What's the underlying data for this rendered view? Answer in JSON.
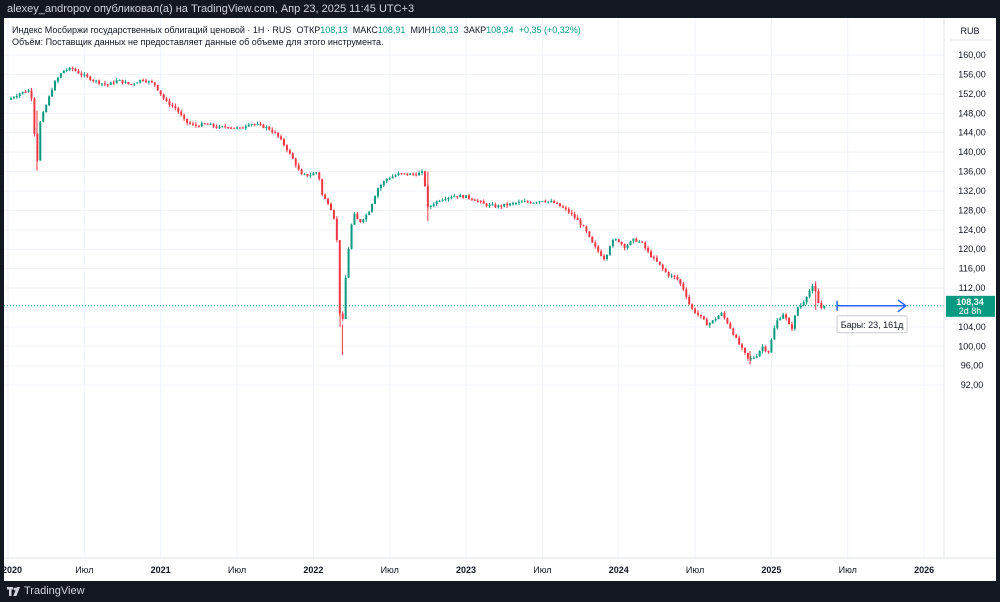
{
  "header": {
    "publisher_line": "alexey_andropov опубликовал(а) на TradingView.com, Апр 23, 2025 11:45 UTC+3"
  },
  "legend": {
    "instrument": "Индекс Мосбиржи государственных облигаций ценовой · 1Н · RUS",
    "open_label": "ОТКР",
    "open_value": "108,13",
    "high_label": "МАКС",
    "high_value": "108,91",
    "low_label": "МИН",
    "low_value": "108,13",
    "close_label": "ЗАКР",
    "close_value": "108,34",
    "change": "+0,35 (+0,32%)",
    "volume_note": "Объём: Поставщик данных не предоставляет данные об объеме для этого инструмента."
  },
  "footer": {
    "brand": "TradingView"
  },
  "colors": {
    "up": "#089981",
    "down": "#f23645",
    "tool": "#2962ff",
    "grid": "#f0f3fa",
    "price_line": "#089981"
  },
  "chart_data": {
    "type": "candlestick",
    "timeframe": "1W",
    "currency": "RUB",
    "y_axis": {
      "min": 90,
      "max": 162,
      "ticks": [
        92,
        96,
        100,
        104,
        108,
        112,
        116,
        120,
        124,
        128,
        132,
        136,
        140,
        144,
        148,
        152,
        156,
        160
      ],
      "tick_labels": [
        "92,00",
        "96,00",
        "100,00",
        "104,00",
        "108,00",
        "112,00",
        "116,00",
        "120,00",
        "124,00",
        "128,00",
        "132,00",
        "136,00",
        "140,00",
        "144,00",
        "148,00",
        "152,00",
        "156,00",
        "160,00"
      ]
    },
    "x_axis": {
      "start": 2020.0,
      "end": 2026.15,
      "ticks": [
        2020.0,
        2020.5,
        2021.0,
        2021.5,
        2022.0,
        2022.5,
        2023.0,
        2023.5,
        2024.0,
        2024.5,
        2025.0,
        2025.5,
        2026.0
      ],
      "tick_labels": [
        "2020",
        "Июл",
        "2021",
        "Июл",
        "2022",
        "Июл",
        "2023",
        "Июл",
        "2024",
        "Июл",
        "2025",
        "Июл",
        "2026"
      ]
    },
    "last_price": {
      "value": 108.34,
      "label": "108,34",
      "countdown": "2d 8h"
    },
    "path_points": [
      [
        2020.0,
        150.8
      ],
      [
        2020.08,
        152.2
      ],
      [
        2020.15,
        152.8
      ],
      [
        2020.19,
        137.5
      ],
      [
        2020.21,
        146.0
      ],
      [
        2020.24,
        148.8
      ],
      [
        2020.3,
        154.0
      ],
      [
        2020.36,
        156.8
      ],
      [
        2020.42,
        157.2
      ],
      [
        2020.48,
        156.0
      ],
      [
        2020.56,
        154.8
      ],
      [
        2020.65,
        153.8
      ],
      [
        2020.72,
        154.8
      ],
      [
        2020.8,
        153.9
      ],
      [
        2020.88,
        155.0
      ],
      [
        2020.96,
        154.0
      ],
      [
        2021.03,
        150.5
      ],
      [
        2021.1,
        149.0
      ],
      [
        2021.16,
        146.3
      ],
      [
        2021.22,
        145.4
      ],
      [
        2021.3,
        145.8
      ],
      [
        2021.38,
        145.0
      ],
      [
        2021.44,
        145.3
      ],
      [
        2021.52,
        144.8
      ],
      [
        2021.58,
        146.0
      ],
      [
        2021.64,
        145.5
      ],
      [
        2021.7,
        145.0
      ],
      [
        2021.76,
        143.6
      ],
      [
        2021.82,
        141.0
      ],
      [
        2021.88,
        137.8
      ],
      [
        2021.92,
        135.2
      ],
      [
        2021.98,
        135.3
      ],
      [
        2022.03,
        136.0
      ],
      [
        2022.06,
        130.8
      ],
      [
        2022.1,
        129.5
      ],
      [
        2022.12,
        128.0
      ],
      [
        2022.15,
        125.0
      ],
      [
        2022.17,
        108.3
      ],
      [
        2022.185,
        101.5
      ],
      [
        2022.205,
        112.0
      ],
      [
        2022.23,
        120.0
      ],
      [
        2022.26,
        127.5
      ],
      [
        2022.3,
        125.5
      ],
      [
        2022.36,
        127.5
      ],
      [
        2022.42,
        132.5
      ],
      [
        2022.48,
        134.5
      ],
      [
        2022.56,
        135.5
      ],
      [
        2022.66,
        135.4
      ],
      [
        2022.72,
        135.8
      ],
      [
        2022.75,
        128.5
      ],
      [
        2022.79,
        129.5
      ],
      [
        2022.84,
        130.4
      ],
      [
        2022.92,
        131.0
      ],
      [
        2023.0,
        130.8
      ],
      [
        2023.06,
        130.2
      ],
      [
        2023.12,
        129.2
      ],
      [
        2023.2,
        128.8
      ],
      [
        2023.28,
        129.2
      ],
      [
        2023.36,
        129.7
      ],
      [
        2023.44,
        129.7
      ],
      [
        2023.5,
        130.1
      ],
      [
        2023.58,
        129.5
      ],
      [
        2023.66,
        128.0
      ],
      [
        2023.72,
        126.3
      ],
      [
        2023.78,
        124.0
      ],
      [
        2023.83,
        121.0
      ],
      [
        2023.88,
        119.0
      ],
      [
        2023.91,
        118.0
      ],
      [
        2023.95,
        121.5
      ],
      [
        2023.99,
        122.0
      ],
      [
        2024.04,
        120.5
      ],
      [
        2024.1,
        122.0
      ],
      [
        2024.15,
        121.3
      ],
      [
        2024.2,
        119.0
      ],
      [
        2024.26,
        117.0
      ],
      [
        2024.32,
        114.8
      ],
      [
        2024.38,
        114.0
      ],
      [
        2024.43,
        111.5
      ],
      [
        2024.47,
        108.0
      ],
      [
        2024.52,
        106.5
      ],
      [
        2024.58,
        104.5
      ],
      [
        2024.62,
        105.3
      ],
      [
        2024.67,
        106.8
      ],
      [
        2024.72,
        104.5
      ],
      [
        2024.76,
        102.0
      ],
      [
        2024.8,
        99.8
      ],
      [
        2024.85,
        97.2
      ],
      [
        2024.9,
        98.0
      ],
      [
        2024.94,
        100.0
      ],
      [
        2024.98,
        98.8
      ],
      [
        2025.03,
        105.0
      ],
      [
        2025.08,
        106.8
      ],
      [
        2025.13,
        103.3
      ],
      [
        2025.17,
        108.0
      ],
      [
        2025.2,
        108.6
      ],
      [
        2025.24,
        111.0
      ],
      [
        2025.28,
        112.6
      ],
      [
        2025.3,
        109.3
      ],
      [
        2025.33,
        107.8
      ],
      [
        2025.36,
        108.34
      ]
    ],
    "spikes": [
      {
        "x": 2020.19,
        "low": 136.2,
        "high": 148.5
      },
      {
        "x": 2022.175,
        "low": 104.0,
        "high": 117.0
      },
      {
        "x": 2022.19,
        "low": 98.2,
        "high": 104.5
      },
      {
        "x": 2022.75,
        "low": 125.8,
        "high": 136.0
      },
      {
        "x": 2024.86,
        "low": 96.2,
        "high": 99.0
      },
      {
        "x": 2025.29,
        "low": 107.5,
        "high": 113.4
      }
    ],
    "projection": {
      "from_x": 2025.43,
      "to_x": 2025.88,
      "value": 108.34,
      "label": "Бары: 23, 161д"
    }
  }
}
